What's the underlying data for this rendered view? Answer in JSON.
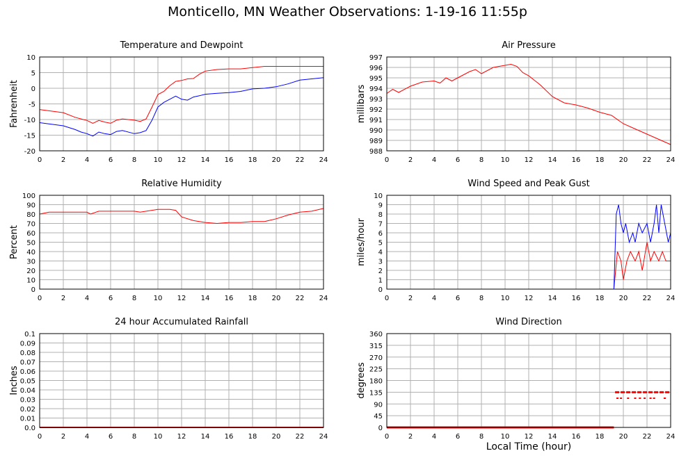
{
  "page": {
    "title": "Monticello, MN Weather Observations: 1-19-16 11:55p",
    "x_axis_label": "Local Time (hour)"
  },
  "colors": {
    "red": "#ff0000",
    "blue": "#0000ff",
    "grid": "#b0b0b0",
    "axis": "#000000"
  },
  "chart_data": [
    {
      "type": "line",
      "title": "Temperature and Dewpoint",
      "ylabel": "Fahrenheit",
      "xlim": [
        0,
        24
      ],
      "ylim": [
        -20,
        10
      ],
      "xticks": [
        0,
        2,
        4,
        6,
        8,
        10,
        12,
        14,
        16,
        18,
        20,
        22,
        24
      ],
      "yticks": [
        -20,
        -15,
        -10,
        -5,
        0,
        5,
        10
      ],
      "grid": true,
      "series": [
        {
          "color": "#ff0000",
          "x": [
            0,
            1,
            2,
            3,
            3.5,
            4,
            4.5,
            5,
            5.5,
            6,
            6.5,
            7,
            8,
            8.5,
            9,
            9.5,
            10,
            10.5,
            11,
            11.5,
            12,
            12.5,
            13,
            13.5,
            14,
            15,
            16,
            17,
            18,
            19,
            20,
            21,
            22,
            23,
            24
          ],
          "y": [
            -6.8,
            -7.3,
            -7.8,
            -9.3,
            -9.8,
            -10.3,
            -11.2,
            -10.3,
            -10.8,
            -11.2,
            -10.2,
            -9.8,
            -10.2,
            -10.6,
            -9.8,
            -6,
            -2,
            -1,
            0.8,
            2.2,
            2.5,
            3,
            3.1,
            4.5,
            5.5,
            6,
            6.2,
            6.2,
            6.6,
            7,
            7,
            7,
            7,
            7,
            7
          ]
        },
        {
          "color": "#0000ff",
          "x": [
            0,
            1,
            2,
            3,
            3.5,
            4,
            4.5,
            5,
            5.5,
            6,
            6.5,
            7,
            8,
            8.5,
            9,
            9.5,
            10,
            10.5,
            11,
            11.5,
            12,
            12.5,
            13,
            13.5,
            14,
            15,
            16,
            17,
            18,
            19,
            20,
            21,
            22,
            23,
            24
          ],
          "y": [
            -11,
            -11.5,
            -12,
            -13.2,
            -14,
            -14.5,
            -15.3,
            -14,
            -14.5,
            -14.8,
            -13.8,
            -13.5,
            -14.5,
            -14.2,
            -13.5,
            -10.2,
            -6,
            -4.5,
            -3.5,
            -2.5,
            -3.5,
            -3.8,
            -2.8,
            -2.4,
            -1.9,
            -1.6,
            -1.4,
            -1,
            -0.2,
            0,
            0.5,
            1.4,
            2.6,
            3,
            3.4
          ]
        }
      ]
    },
    {
      "type": "line",
      "title": "Air Pressure",
      "ylabel": "millibars",
      "xlim": [
        0,
        24
      ],
      "ylim": [
        988,
        997
      ],
      "xticks": [
        0,
        2,
        4,
        6,
        8,
        10,
        12,
        14,
        16,
        18,
        20,
        22,
        24
      ],
      "yticks": [
        988,
        989,
        990,
        991,
        992,
        993,
        994,
        995,
        996,
        997
      ],
      "grid": true,
      "series": [
        {
          "color": "#ff0000",
          "x": [
            0,
            0.5,
            1,
            2,
            3,
            4,
            4.5,
            5,
            5.5,
            6,
            7,
            7.5,
            8,
            9,
            10,
            10.5,
            11,
            11.5,
            12,
            13,
            14,
            15,
            16,
            17,
            18,
            19,
            20,
            21,
            22,
            23,
            24
          ],
          "y": [
            993.5,
            993.9,
            993.6,
            994.2,
            994.6,
            994.7,
            994.5,
            995,
            994.7,
            995,
            995.6,
            995.8,
            995.4,
            996,
            996.2,
            996.3,
            996.1,
            995.5,
            995.2,
            994.3,
            993.2,
            992.6,
            992.4,
            992.1,
            991.7,
            991.4,
            990.6,
            990.1,
            989.6,
            989.1,
            988.6
          ]
        }
      ]
    },
    {
      "type": "line",
      "title": "Relative Humidity",
      "ylabel": "Percent",
      "xlim": [
        0,
        24
      ],
      "ylim": [
        0,
        100
      ],
      "xticks": [
        0,
        2,
        4,
        6,
        8,
        10,
        12,
        14,
        16,
        18,
        20,
        22,
        24
      ],
      "yticks": [
        0,
        10,
        20,
        30,
        40,
        50,
        60,
        70,
        80,
        90,
        100
      ],
      "grid": true,
      "series": [
        {
          "color": "#ff0000",
          "x": [
            0,
            0.8,
            2,
            4,
            4.3,
            5,
            6,
            8,
            8.5,
            10,
            11,
            11.5,
            12,
            13,
            14,
            15,
            16,
            17,
            18,
            19,
            20,
            21,
            22,
            23,
            24
          ],
          "y": [
            80,
            82,
            82,
            82,
            80,
            83,
            83,
            83,
            82,
            85,
            85,
            84,
            77,
            73,
            71,
            70,
            71,
            71,
            72,
            72,
            75,
            79,
            82,
            83,
            86
          ]
        }
      ]
    },
    {
      "type": "line",
      "title": "Wind Speed and Peak Gust",
      "ylabel": "miles/hour",
      "xlim": [
        0,
        24
      ],
      "ylim": [
        0,
        10
      ],
      "xticks": [
        0,
        2,
        4,
        6,
        8,
        10,
        12,
        14,
        16,
        18,
        20,
        22,
        24
      ],
      "yticks": [
        0,
        1,
        2,
        3,
        4,
        5,
        6,
        7,
        8,
        9,
        10
      ],
      "grid": true,
      "series": [
        {
          "color": "#ff0000",
          "x": [
            0,
            19.2,
            19.5,
            19.8,
            20,
            20.3,
            20.6,
            21,
            21.3,
            21.6,
            22,
            22.3,
            22.6,
            23,
            23.3,
            23.6,
            24
          ],
          "y": [
            0,
            0,
            4,
            3,
            1,
            3,
            4,
            3,
            4,
            2,
            5,
            3,
            4,
            3,
            4,
            3,
            3
          ]
        },
        {
          "color": "#0000ff",
          "x": [
            0,
            19.2,
            19.4,
            19.6,
            19.8,
            20,
            20.2,
            20.5,
            20.8,
            21,
            21.3,
            21.6,
            22,
            22.3,
            22.6,
            22.8,
            23,
            23.2,
            23.5,
            23.8,
            24
          ],
          "y": [
            0,
            0,
            8,
            9,
            7,
            6,
            7,
            5,
            6,
            5,
            7,
            6,
            7,
            5,
            7,
            9,
            6,
            9,
            7,
            5,
            6
          ]
        }
      ]
    },
    {
      "type": "area",
      "title": "24 hour Accumulated Rainfall",
      "ylabel": "Inches",
      "xlim": [
        0,
        24
      ],
      "ylim": [
        0,
        0.1
      ],
      "xticks": [
        0,
        2,
        4,
        6,
        8,
        10,
        12,
        14,
        16,
        18,
        20,
        22,
        24
      ],
      "yticks": [
        "0.0",
        "0.01",
        "0.02",
        "0.03",
        "0.04",
        "0.05",
        "0.06",
        "0.07",
        "0.08",
        "0.09",
        "0.1"
      ],
      "grid": true,
      "series": [
        {
          "color": "#ff0000",
          "x": [
            0,
            24
          ],
          "y": [
            0,
            0
          ]
        }
      ]
    },
    {
      "type": "scatter",
      "title": "Wind Direction",
      "ylabel": "degrees",
      "xlim": [
        0,
        24
      ],
      "ylim": [
        0,
        360
      ],
      "xticks": [
        0,
        2,
        4,
        6,
        8,
        10,
        12,
        14,
        16,
        18,
        20,
        22,
        24
      ],
      "yticks": [
        0,
        45,
        90,
        135,
        180,
        225,
        270,
        315,
        360
      ],
      "grid": true,
      "series": [
        {
          "color": "#ff0000",
          "x": [
            0,
            19.2
          ],
          "y": [
            0,
            0
          ]
        },
        {
          "color": "#ff0000",
          "x": [
            19.3,
            24
          ],
          "y": [
            135,
            135
          ]
        },
        {
          "color": "#ff0000",
          "x": [
            19.5,
            19.8,
            20.4,
            21,
            21.4,
            21.8,
            22.3,
            22.6,
            23.5
          ],
          "y": [
            112,
            112,
            112,
            112,
            112,
            112,
            112,
            112,
            112
          ]
        }
      ]
    }
  ]
}
